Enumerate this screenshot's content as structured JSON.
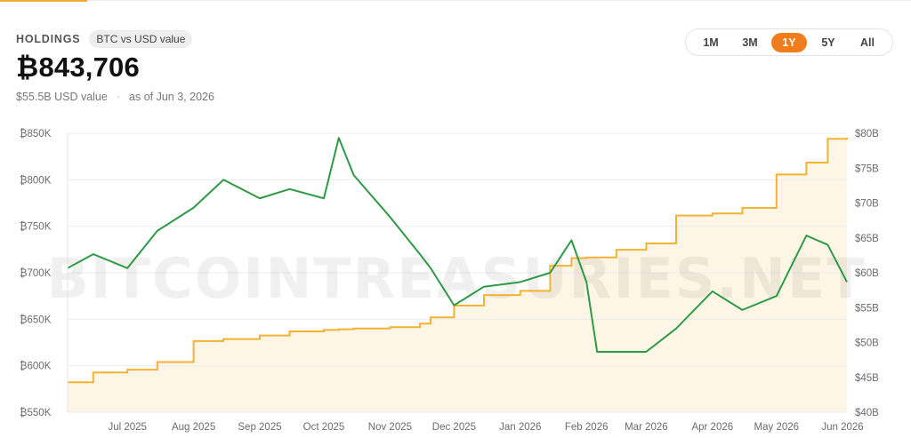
{
  "header": {
    "label": "HOLDINGS",
    "badge": "BTC vs USD value",
    "value": "₿843,706",
    "usd_value": "$55.5B USD value",
    "separator": "·",
    "as_of": "as of Jun 3, 2026"
  },
  "range": {
    "options": [
      "1M",
      "3M",
      "1Y",
      "5Y",
      "All"
    ],
    "selected": "1Y"
  },
  "watermark": "BITCOINTREASURIES.NET",
  "colors": {
    "btc_line": "#2e9a46",
    "usd_line": "#f2b233",
    "usd_fill": "#fdf6e6",
    "active": "#f07c1c"
  },
  "chart_data": {
    "type": "line",
    "x": [
      "2025-06-03",
      "2025-06-15",
      "2025-07-01",
      "2025-07-15",
      "2025-08-01",
      "2025-08-15",
      "2025-09-01",
      "2025-09-15",
      "2025-10-01",
      "2025-10-08",
      "2025-10-15",
      "2025-11-01",
      "2025-11-15",
      "2025-11-20",
      "2025-12-01",
      "2025-12-15",
      "2026-01-01",
      "2026-01-15",
      "2026-01-25",
      "2026-02-01",
      "2026-02-06",
      "2026-02-15",
      "2026-03-01",
      "2026-03-15",
      "2026-04-01",
      "2026-04-15",
      "2026-05-01",
      "2026-05-15",
      "2026-05-25",
      "2026-06-03"
    ],
    "x_ticks": [
      "Jul 2025",
      "Aug 2025",
      "Sep 2025",
      "Oct 2025",
      "Nov 2025",
      "Dec 2025",
      "Jan 2026",
      "Feb 2026",
      "Mar 2026",
      "Apr 2026",
      "May 2026",
      "Jun 2026"
    ],
    "series": [
      {
        "axis": "left",
        "values": [
          705000,
          720000,
          705000,
          745000,
          770000,
          800000,
          780000,
          790000,
          780000,
          845000,
          805000,
          760000,
          720000,
          705000,
          665000,
          685000,
          690000,
          700000,
          735000,
          690000,
          615000,
          615000,
          615000,
          640000,
          680000,
          660000,
          675000,
          740000,
          730000,
          690000
        ]
      },
      {
        "axis": "right",
        "values": [
          44.3,
          45.7,
          46.1,
          47.2,
          50.2,
          50.5,
          51.0,
          51.6,
          51.8,
          51.9,
          52.0,
          52.2,
          52.7,
          53.6,
          55.3,
          56.8,
          57.4,
          61.0,
          62.1,
          62.2,
          62.2,
          63.3,
          64.2,
          68.2,
          68.5,
          69.3,
          74.1,
          75.8,
          79.2,
          79.4
        ]
      }
    ],
    "y_left": {
      "range": [
        550000,
        850000
      ],
      "ticks": [
        "₿550K",
        "₿600K",
        "₿650K",
        "₿700K",
        "₿750K",
        "₿800K",
        "₿850K"
      ]
    },
    "y_right": {
      "range": [
        40,
        80
      ],
      "ticks": [
        "$40B",
        "$45B",
        "$50B",
        "$55B",
        "$60B",
        "$65B",
        "$70B",
        "$75B",
        "$80B"
      ]
    },
    "grid": true
  }
}
